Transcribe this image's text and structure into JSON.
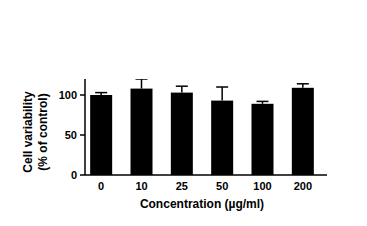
{
  "chart_data": {
    "type": "bar",
    "xlabel": "Concentration (µg/ml)",
    "ylabel": [
      "Cell variability",
      "(% of control)"
    ],
    "categories": [
      "0",
      "10",
      "25",
      "50",
      "100",
      "200"
    ],
    "values": [
      100,
      108,
      103,
      93,
      89,
      109
    ],
    "errors": [
      3,
      12,
      8,
      17,
      3,
      5
    ],
    "color": "#000000",
    "ylim": [
      0,
      120
    ],
    "yticks": [
      0,
      50,
      100
    ],
    "grid": false
  }
}
